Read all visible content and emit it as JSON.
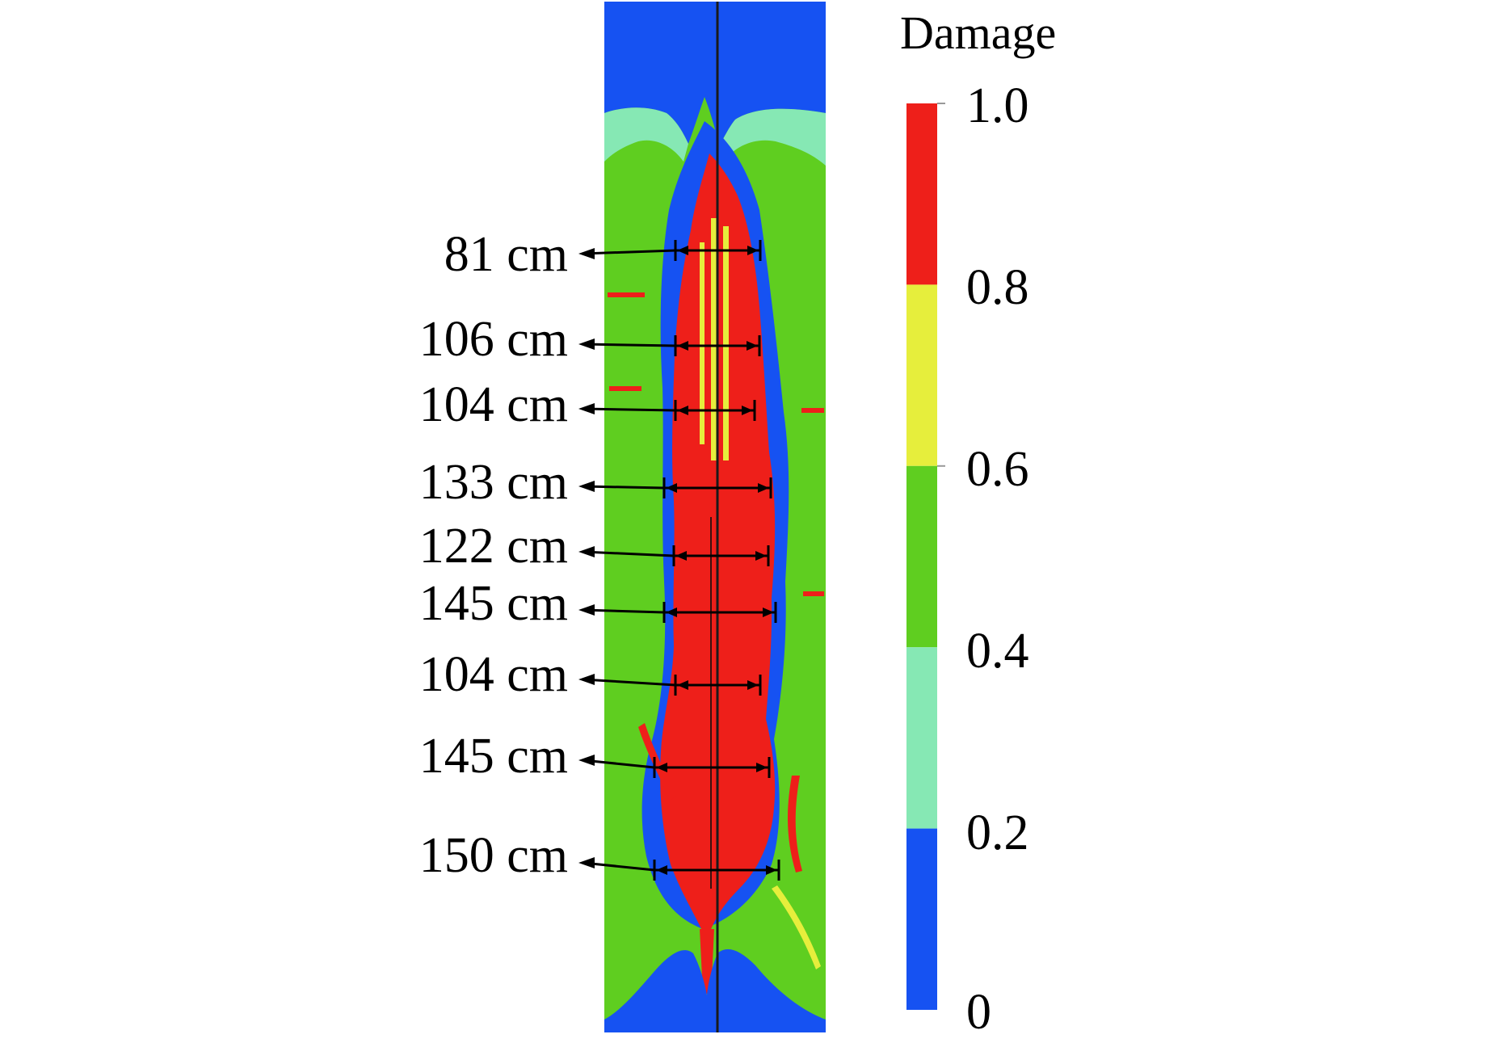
{
  "colorbar": {
    "title": "Damage",
    "tick_labels": [
      "1.0",
      "0.8",
      "0.6",
      "0.4",
      "0.2",
      "0"
    ],
    "bands": [
      {
        "from": 0.8,
        "to": 1.0,
        "color": "#ee1f1a"
      },
      {
        "from": 0.6,
        "to": 0.8,
        "color": "#e6ee3c"
      },
      {
        "from": 0.4,
        "to": 0.6,
        "color": "#5fce20"
      },
      {
        "from": 0.2,
        "to": 0.4,
        "color": "#86e8b4"
      },
      {
        "from": 0.0,
        "to": 0.2,
        "color": "#1652f2"
      }
    ]
  },
  "measurements": [
    "81 cm",
    "106 cm",
    "104 cm",
    "133 cm",
    "122 cm",
    "145 cm",
    "104 cm",
    "145 cm",
    "150 cm"
  ]
}
